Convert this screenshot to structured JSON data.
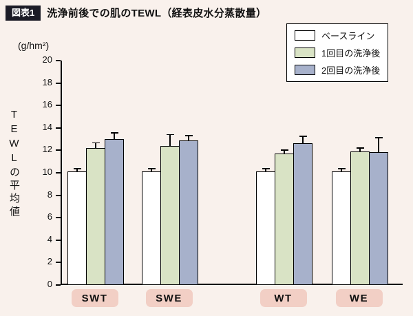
{
  "header": {
    "badge": "図表1",
    "title": "洗浄前後での肌のTEWL（経表皮水分蒸散量）"
  },
  "chart_data": {
    "type": "bar",
    "title": "洗浄前後での肌のTEWL（経表皮水分蒸散量）",
    "unit_label": "(g/hm²)",
    "ylabel": "TEWLの平均値",
    "ylim": [
      0,
      20
    ],
    "ytick_step": 2,
    "grid": false,
    "legend_position": "top-right",
    "categories": [
      "SWT",
      "SWE",
      "WT",
      "WE"
    ],
    "series": [
      {
        "name": "ベースライン",
        "color": "#ffffff",
        "values": [
          10.1,
          10.1,
          10.1,
          10.1
        ],
        "errors": [
          0.25,
          0.25,
          0.25,
          0.25
        ]
      },
      {
        "name": "1回目の洗浄後",
        "color": "#d9e3c5",
        "values": [
          12.2,
          12.4,
          11.7,
          11.9
        ],
        "errors": [
          0.45,
          1.0,
          0.3,
          0.3
        ]
      },
      {
        "name": "2回目の洗浄後",
        "color": "#a7b1cb",
        "values": [
          13.0,
          12.9,
          12.65,
          11.85
        ],
        "errors": [
          0.55,
          0.4,
          0.6,
          1.25
        ]
      }
    ]
  }
}
